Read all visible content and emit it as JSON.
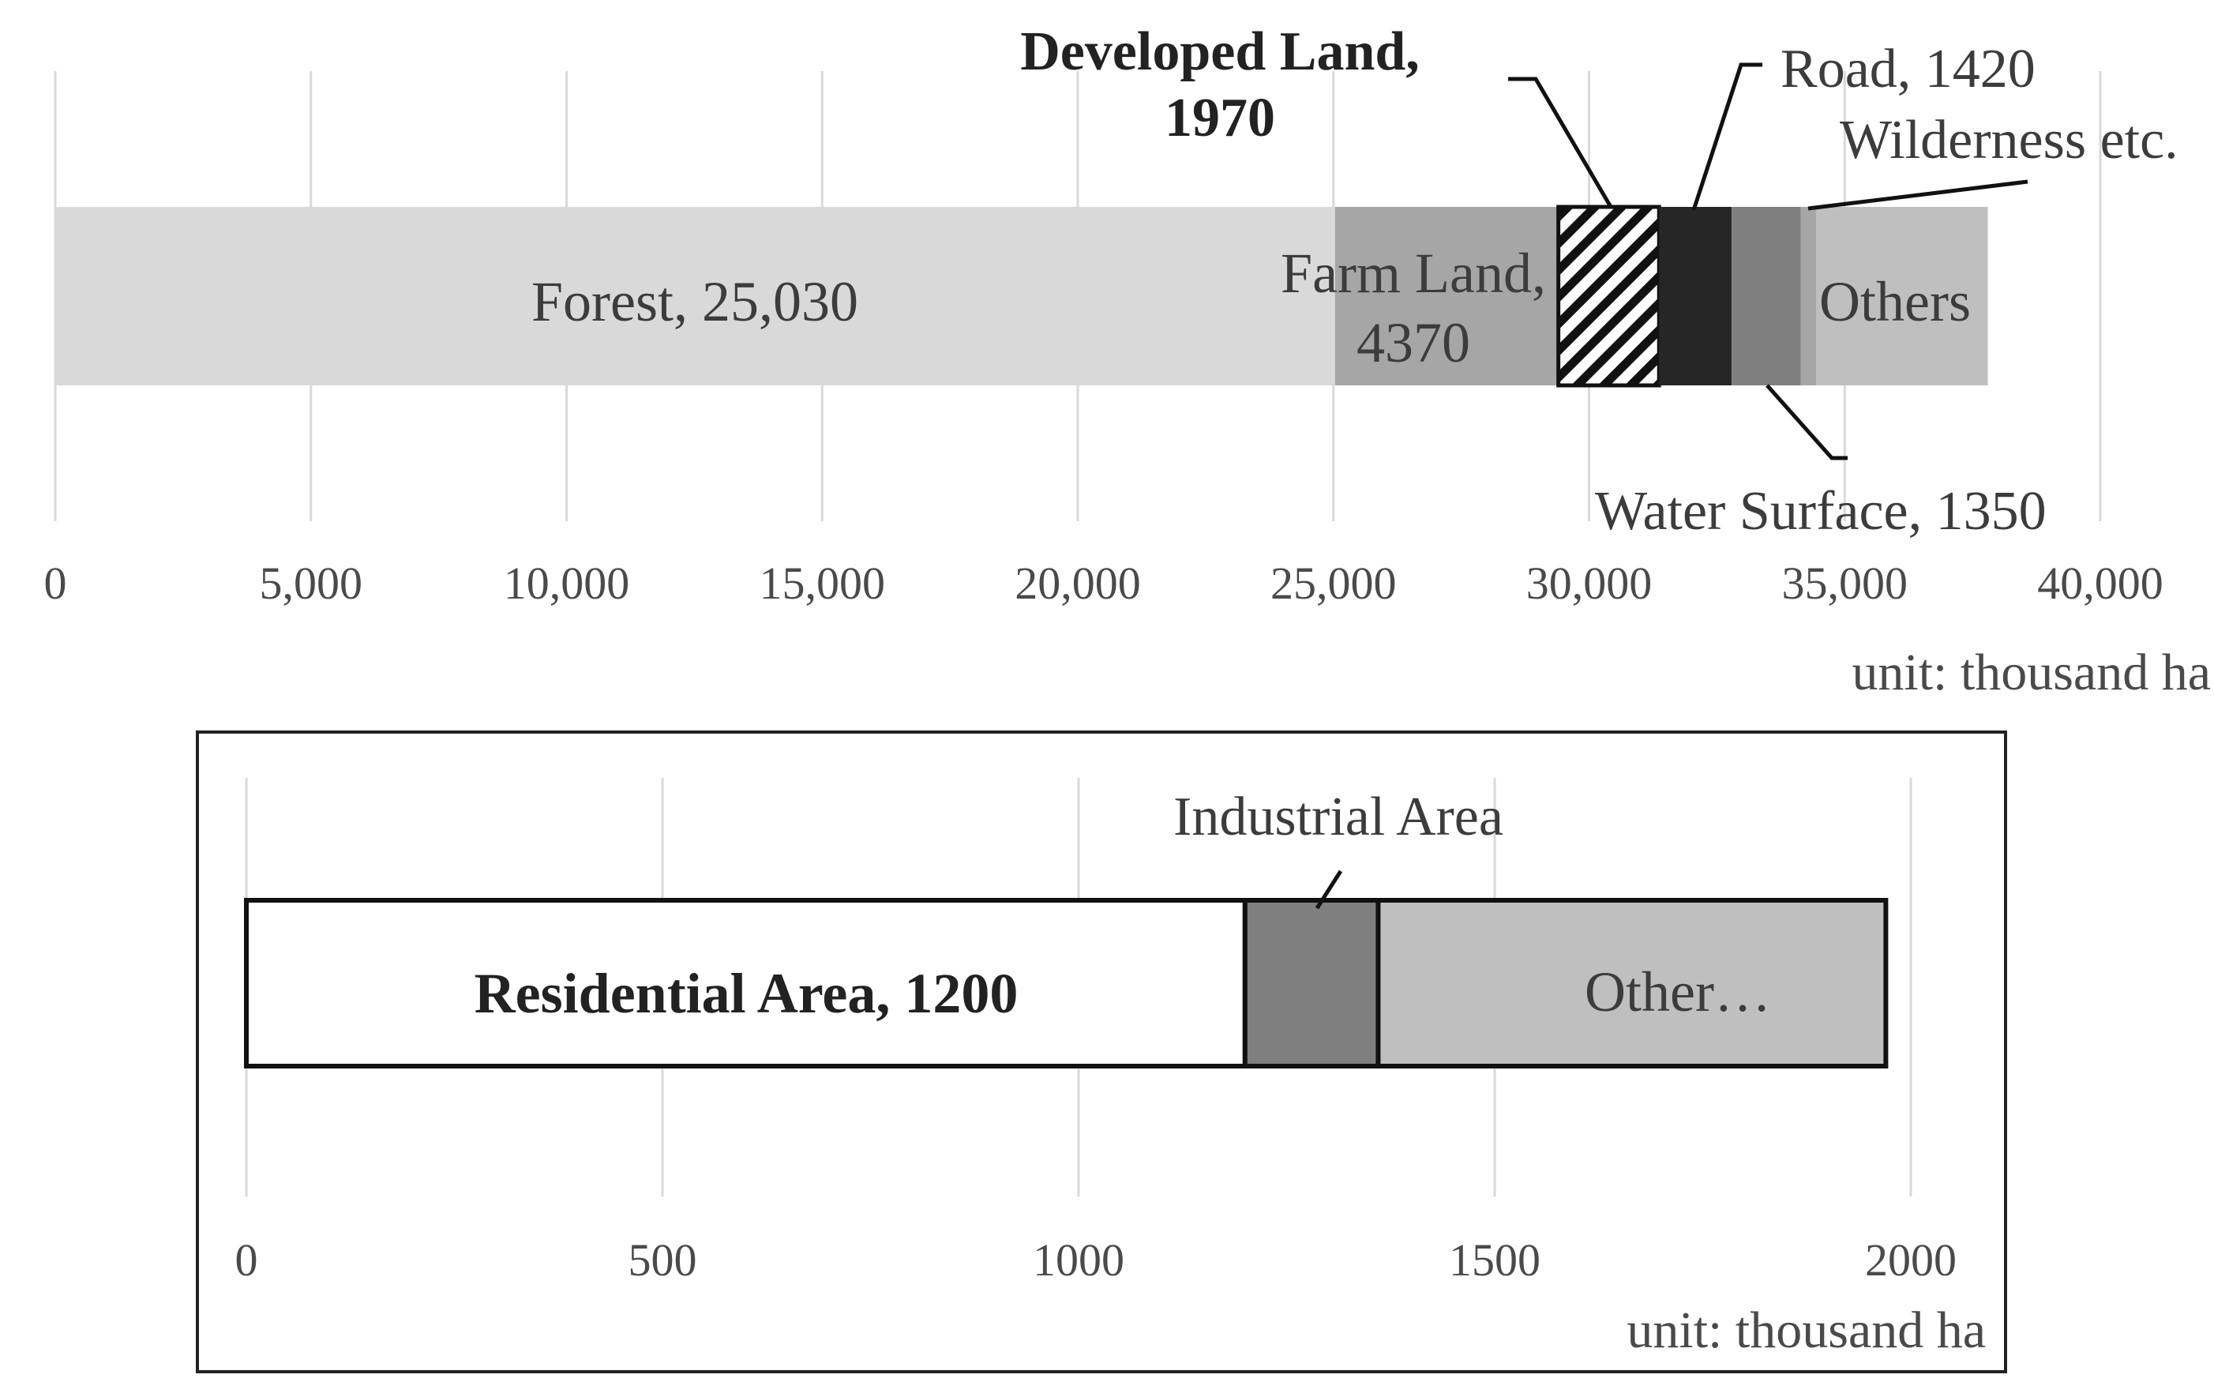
{
  "chart_data": [
    {
      "type": "bar",
      "orientation": "horizontal",
      "stacked": true,
      "xlim": [
        0,
        40000
      ],
      "xticks": [
        "0",
        "5,000",
        "10,000",
        "15,000",
        "20,000",
        "25,000",
        "30,000",
        "35,000",
        "40,000"
      ],
      "unit_label": "unit: thousand ha",
      "grid": true,
      "segments": [
        {
          "name": "Forest",
          "value": 25030,
          "label": "Forest, 25,030",
          "color": "#d9d9d9"
        },
        {
          "name": "Farm Land",
          "value": 4370,
          "label_line1": "Farm Land,",
          "label_line2": "4370",
          "color": "#a6a6a6"
        },
        {
          "name": "Developed Land",
          "value": 1970,
          "label_line1": "Developed Land,",
          "label_line2": "1970",
          "color": "#ffffff",
          "pattern": "hatched"
        },
        {
          "name": "Road",
          "value": 1420,
          "label": "Road, 1420",
          "color": "#262626"
        },
        {
          "name": "Water Surface",
          "value": 1350,
          "label": "Water Surface, 1350",
          "color": "#7f7f7f"
        },
        {
          "name": "Wilderness etc.",
          "value": 300,
          "label": "Wilderness etc.",
          "color": "#a6a6a6"
        },
        {
          "name": "Others",
          "value": 3360,
          "label": "Others",
          "color": "#bfbfbf"
        }
      ]
    },
    {
      "type": "bar",
      "orientation": "horizontal",
      "stacked": true,
      "xlim": [
        0,
        2000
      ],
      "xticks": [
        "0",
        "500",
        "1000",
        "1500",
        "2000"
      ],
      "unit_label": "unit: thousand ha",
      "grid": true,
      "segments": [
        {
          "name": "Residential Area",
          "value": 1200,
          "label": "Residential Area, 1200",
          "color": "#ffffff"
        },
        {
          "name": "Industrial Area",
          "value": 160,
          "label": "Industrial Area",
          "color": "#7f7f7f"
        },
        {
          "name": "Other",
          "value": 610,
          "label": "Other…",
          "color": "#bfbfbf"
        }
      ]
    }
  ]
}
